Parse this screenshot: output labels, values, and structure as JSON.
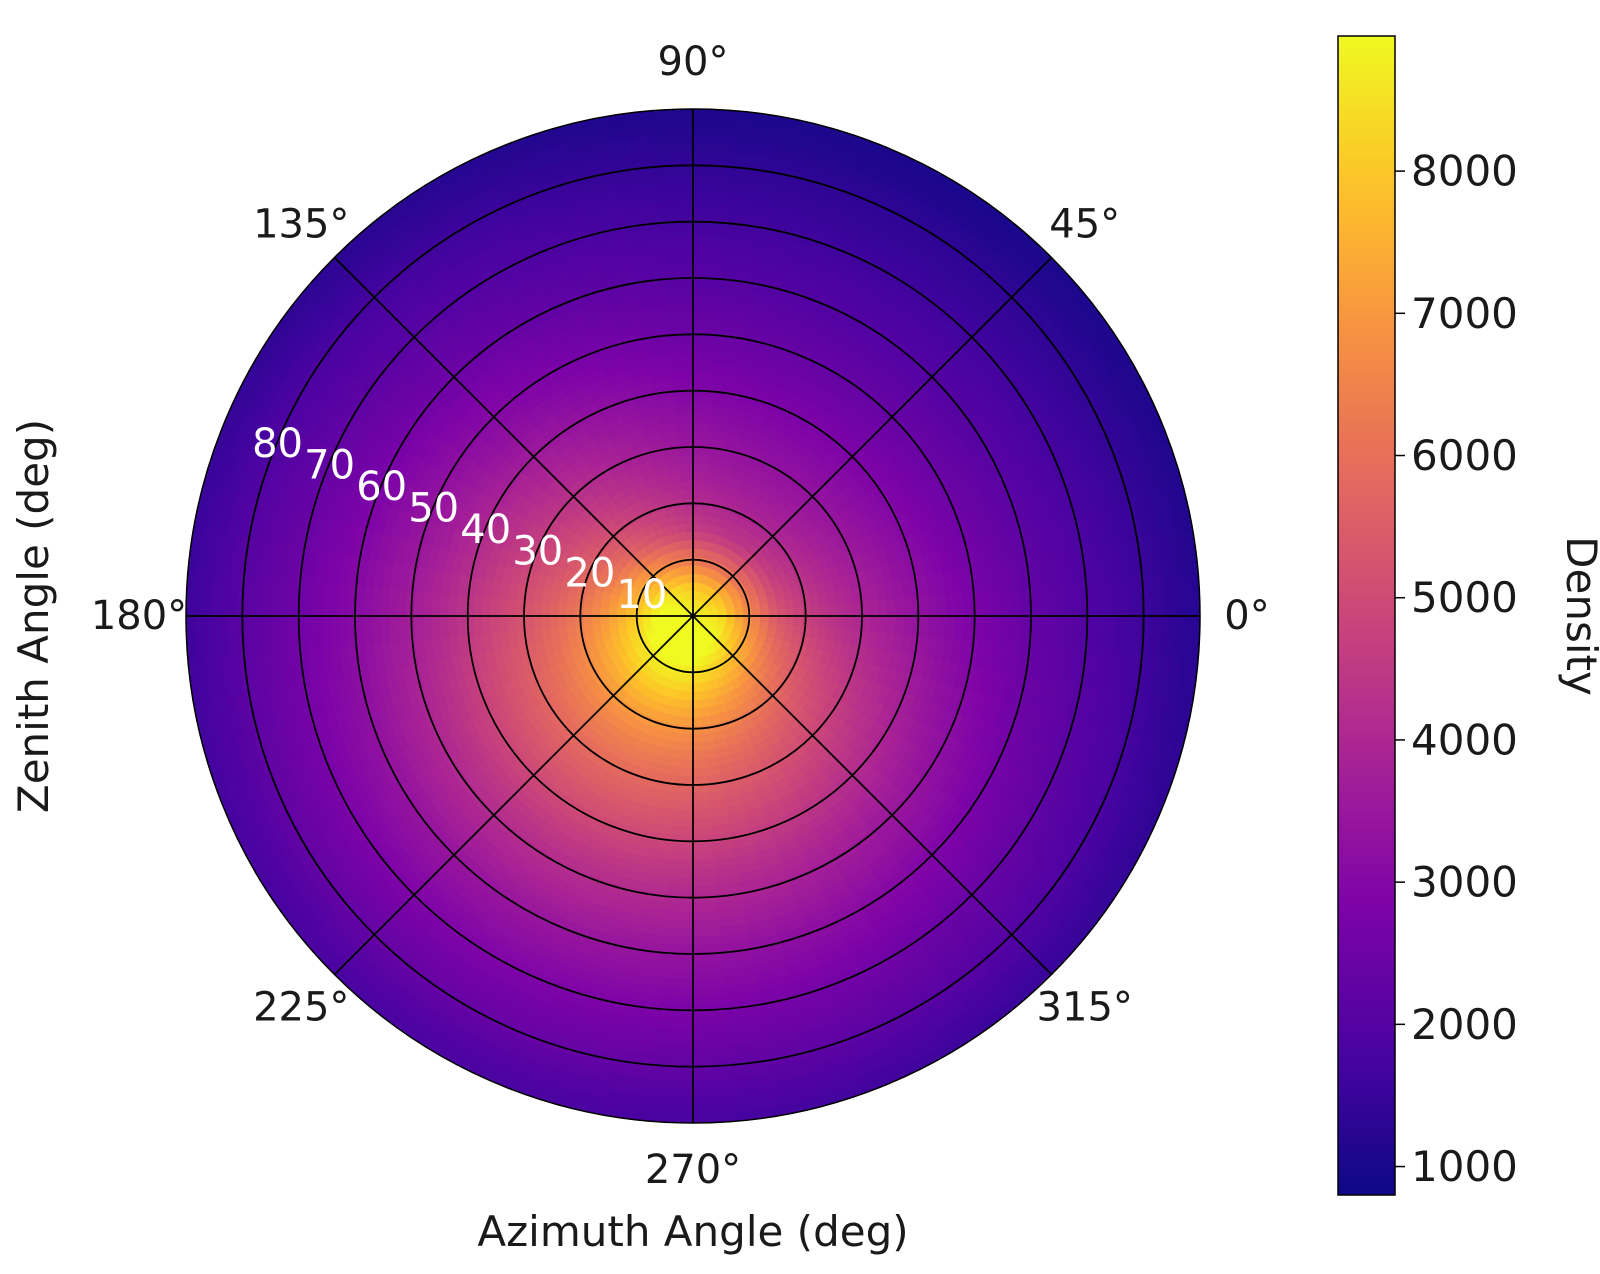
{
  "chart_data": {
    "type": "heatmap",
    "projection": "polar",
    "xlabel": "Azimuth Angle (deg)",
    "ylabel": "Zenith Angle (deg)",
    "colorbar_label": "Density",
    "colormap": "plasma",
    "azimuth_ticks": [
      {
        "value": 0,
        "label": "0°"
      },
      {
        "value": 45,
        "label": "45°"
      },
      {
        "value": 90,
        "label": "90°"
      },
      {
        "value": 135,
        "label": "135°"
      },
      {
        "value": 180,
        "label": "180°"
      },
      {
        "value": 225,
        "label": "225°"
      },
      {
        "value": 270,
        "label": "270°"
      },
      {
        "value": 315,
        "label": "315°"
      }
    ],
    "zenith_ticks": [
      {
        "value": 10,
        "label": "10"
      },
      {
        "value": 20,
        "label": "20"
      },
      {
        "value": 30,
        "label": "30"
      },
      {
        "value": 40,
        "label": "40"
      },
      {
        "value": 50,
        "label": "50"
      },
      {
        "value": 60,
        "label": "60"
      },
      {
        "value": 70,
        "label": "70"
      },
      {
        "value": 80,
        "label": "80"
      }
    ],
    "zenith_range": [
      0,
      90
    ],
    "grid": true,
    "colorbar": {
      "range": [
        800,
        8950
      ],
      "ticks": [
        {
          "value": 1000,
          "label": "1000"
        },
        {
          "value": 2000,
          "label": "2000"
        },
        {
          "value": 3000,
          "label": "3000"
        },
        {
          "value": 4000,
          "label": "4000"
        },
        {
          "value": 5000,
          "label": "5000"
        },
        {
          "value": 6000,
          "label": "6000"
        },
        {
          "value": 7000,
          "label": "7000"
        },
        {
          "value": 8000,
          "label": "8000"
        }
      ]
    },
    "density_profile": {
      "zenith": [
        0,
        5,
        10,
        15,
        20,
        25,
        30,
        35,
        40,
        45,
        50,
        55,
        60,
        65,
        70,
        75,
        80,
        85,
        90
      ],
      "density": [
        8900,
        8800,
        7400,
        6200,
        5500,
        5000,
        4600,
        4250,
        3900,
        3550,
        3250,
        3000,
        2700,
        2500,
        2250,
        2050,
        1850,
        1600,
        1400
      ]
    },
    "azimuth_modulation": {
      "amplitude_fraction": 0.28,
      "peak_azimuth": 240
    }
  }
}
